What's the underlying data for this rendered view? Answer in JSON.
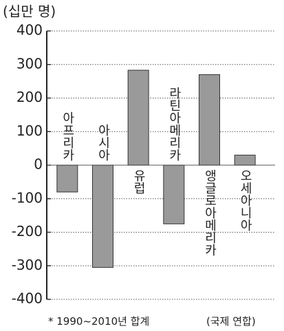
{
  "chart_data": {
    "type": "bar",
    "y_label": "(십만 명)",
    "categories": [
      "아프리카",
      "아시아",
      "유럽",
      "라틴아메리카",
      "앵글로아메리카",
      "오세아니아"
    ],
    "values": [
      -80,
      -305,
      283,
      -175,
      270,
      30
    ],
    "color": "#9a9a9a",
    "ylim": [
      -400,
      400
    ],
    "yticks": [
      -400,
      -300,
      -200,
      -100,
      0,
      100,
      200,
      300,
      400
    ],
    "grid": true,
    "footnote": "* 1990~2010년 합계",
    "source": "(국제 연합)"
  }
}
